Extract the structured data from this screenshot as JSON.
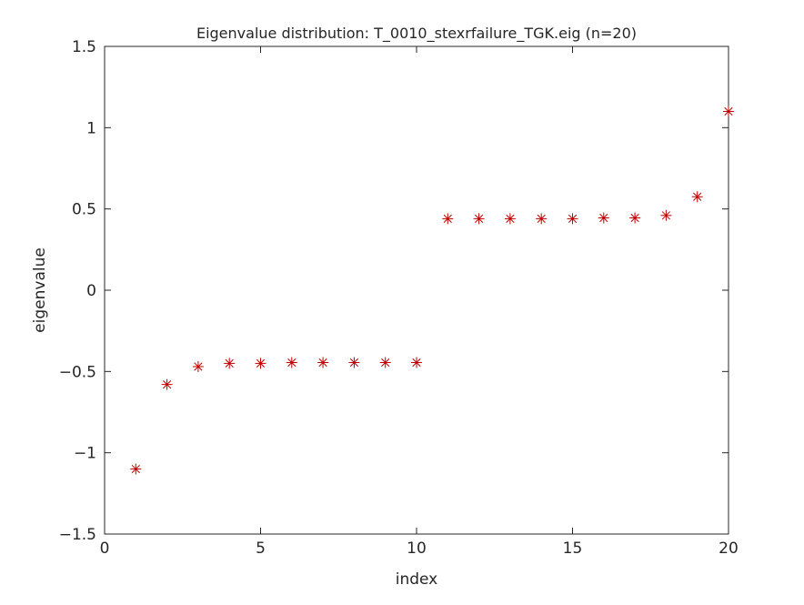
{
  "chart_data": {
    "type": "scatter",
    "title": "Eigenvalue distribution: T_0010_stexrfailure_TGK.eig (n=20)",
    "xlabel": "index",
    "ylabel": "eigenvalue",
    "xlim": [
      0,
      20
    ],
    "ylim": [
      -1.5,
      1.5
    ],
    "xticks": [
      0,
      5,
      10,
      15,
      20
    ],
    "xtick_labels": [
      "0",
      "5",
      "10",
      "15",
      "20"
    ],
    "yticks": [
      -1.5,
      -1,
      -0.5,
      0,
      0.5,
      1,
      1.5
    ],
    "ytick_labels": [
      "−1.5",
      "−1",
      "−0.5",
      "0",
      "0.5",
      "1",
      "1.5"
    ],
    "grid": false,
    "marker": "asterisk",
    "marker_color": "#c00000",
    "series": [
      {
        "x": [
          1,
          2,
          3,
          4,
          5,
          6,
          7,
          8,
          9,
          10,
          11,
          12,
          13,
          14,
          15,
          16,
          17,
          18,
          19,
          20
        ],
        "y": [
          -1.1,
          -0.58,
          -0.47,
          -0.45,
          -0.45,
          -0.445,
          -0.445,
          -0.445,
          -0.445,
          -0.445,
          0.44,
          0.44,
          0.44,
          0.44,
          0.44,
          0.445,
          0.445,
          0.46,
          0.575,
          1.1
        ]
      }
    ]
  }
}
